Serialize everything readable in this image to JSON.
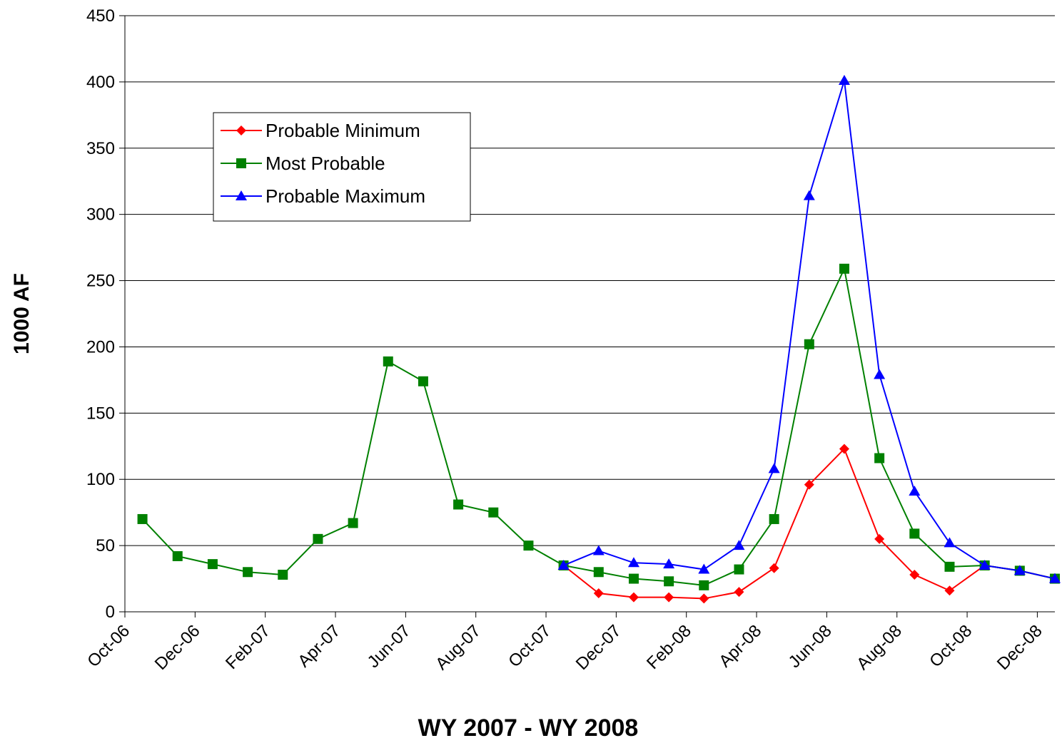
{
  "chart_data": {
    "type": "line",
    "x_label": "WY 2007 - WY 2008",
    "y_label": "1000 AF",
    "categories": [
      "Oct-06",
      null,
      "Dec-06",
      null,
      "Feb-07",
      null,
      "Apr-07",
      null,
      "Jun-07",
      null,
      "Aug-07",
      null,
      "Oct-07",
      null,
      "Dec-07",
      null,
      "Feb-08",
      null,
      "Apr-08",
      null,
      "Jun-08",
      null,
      "Aug-08",
      null,
      "Oct-08",
      null,
      "Dec-08"
    ],
    "series": [
      {
        "name": "Probable Minimum",
        "color": "#ff0000",
        "marker": "diamond",
        "values": [
          null,
          null,
          null,
          null,
          null,
          null,
          null,
          null,
          null,
          null,
          null,
          null,
          35,
          14,
          11,
          11,
          10,
          15,
          33,
          96,
          123,
          55,
          28,
          16,
          35,
          31,
          25
        ]
      },
      {
        "name": "Most Probable",
        "color": "#008000",
        "marker": "square",
        "values": [
          70,
          42,
          36,
          30,
          28,
          55,
          67,
          189,
          174,
          81,
          75,
          50,
          35,
          30,
          25,
          23,
          20,
          32,
          70,
          202,
          259,
          116,
          59,
          34,
          35,
          31,
          25
        ]
      },
      {
        "name": "Probable Maximum",
        "color": "#0000ff",
        "marker": "triangle",
        "values": [
          null,
          null,
          null,
          null,
          null,
          null,
          null,
          null,
          null,
          null,
          null,
          null,
          35,
          46,
          37,
          36,
          32,
          50,
          108,
          314,
          401,
          179,
          91,
          52,
          35,
          31,
          25
        ]
      }
    ],
    "ylim": [
      0,
      450
    ],
    "yticks": [
      0,
      50,
      100,
      150,
      200,
      250,
      300,
      350,
      400,
      450
    ],
    "grid": true,
    "legend": "upper-left"
  }
}
